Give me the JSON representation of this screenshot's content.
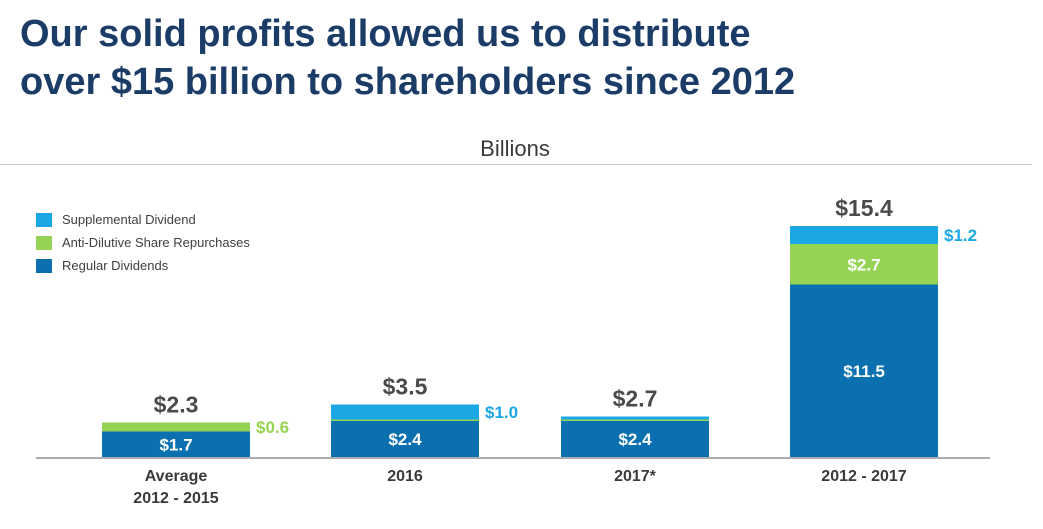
{
  "title": {
    "line1": "Our solid profits allowed us to distribute",
    "line2": "over $15 billion to shareholders since 2012"
  },
  "units_label": "Billions",
  "colors": {
    "supplemental": "#1aa7e3",
    "repurchases": "#95d354",
    "regular": "#0a70b0",
    "total_text": "#4a4a4a",
    "axis": "#7a7a7a",
    "title": "#1c3c68"
  },
  "legend": [
    {
      "label": "Supplemental Dividend",
      "series": "supplemental"
    },
    {
      "label": "Anti-Dilutive Share Repurchases",
      "series": "repurchases"
    },
    {
      "label": "Regular Dividends",
      "series": "regular"
    }
  ],
  "chart_data": {
    "type": "bar",
    "stacked": true,
    "title": "Billions",
    "categories": [
      [
        "Average",
        "2012 - 2015"
      ],
      [
        "2016"
      ],
      [
        "2017*"
      ],
      [
        "2012 - 2017"
      ]
    ],
    "series": [
      {
        "name": "Regular Dividends",
        "key": "regular",
        "values": [
          1.7,
          2.4,
          2.4,
          11.5
        ],
        "labels": [
          "$1.7",
          "$2.4",
          "$2.4",
          "$11.5"
        ]
      },
      {
        "name": "Anti-Dilutive Share Repurchases",
        "key": "repurchases",
        "values": [
          0.6,
          0.1,
          0.1,
          2.7
        ],
        "labels": [
          "$0.6",
          "",
          "",
          "$2.7"
        ]
      },
      {
        "name": "Supplemental Dividend",
        "key": "supplemental",
        "values": [
          0,
          1.0,
          0.2,
          1.2
        ],
        "labels": [
          "",
          "$1.0",
          "",
          "$1.2"
        ]
      }
    ],
    "totals": [
      2.3,
      3.5,
      2.7,
      15.4
    ],
    "total_labels": [
      "$2.3",
      "$3.5",
      "$2.7",
      "$15.4"
    ],
    "ylim": [
      0,
      15.4
    ],
    "grid": false,
    "legend_position": "top-left"
  }
}
